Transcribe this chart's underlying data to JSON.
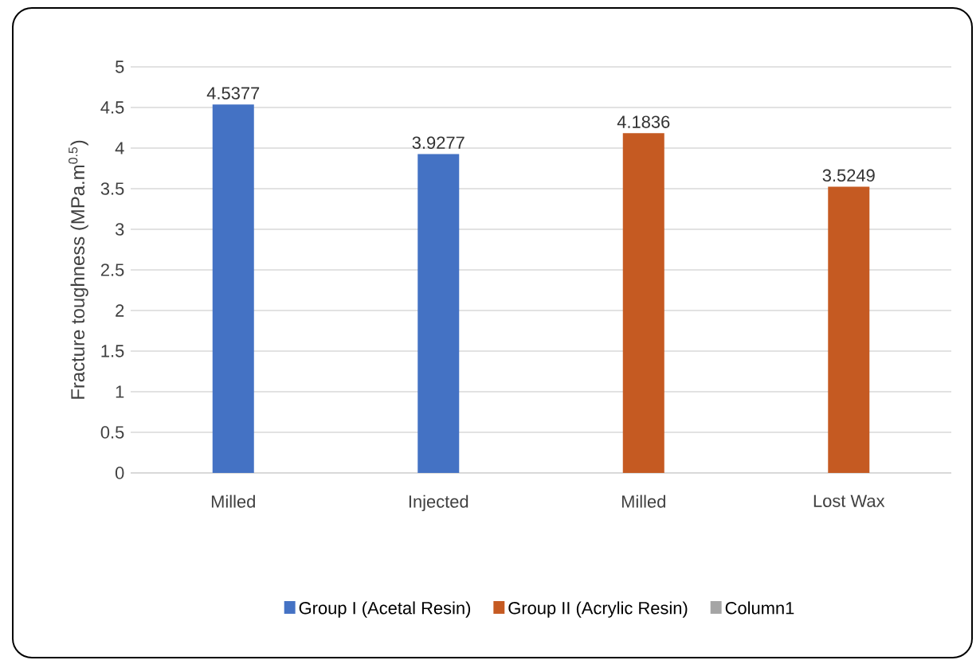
{
  "chart_data": {
    "type": "bar",
    "ylabel": "Fracture toughness (MPa.m$^{0.5}$)",
    "categories": [
      "Milled",
      "Injected",
      "Milled",
      "Lost Wax"
    ],
    "series": [
      {
        "name": "Group I (Acetal Resin)",
        "color": "#4472c4",
        "values": [
          4.5377,
          3.9277,
          null,
          null
        ]
      },
      {
        "name": "Group II (Acrylic Resin)",
        "color": "#c55a22",
        "values": [
          null,
          null,
          4.1836,
          3.5249
        ]
      },
      {
        "name": "Column1",
        "color": "#a5a5a5",
        "values": [
          null,
          null,
          null,
          null
        ]
      }
    ],
    "ylim": [
      0,
      5
    ],
    "yticks": [
      0,
      0.5,
      1,
      1.5,
      2,
      2.5,
      3,
      3.5,
      4,
      4.5,
      5
    ],
    "grid": "y",
    "legend": "bottom",
    "data_labels": true
  }
}
